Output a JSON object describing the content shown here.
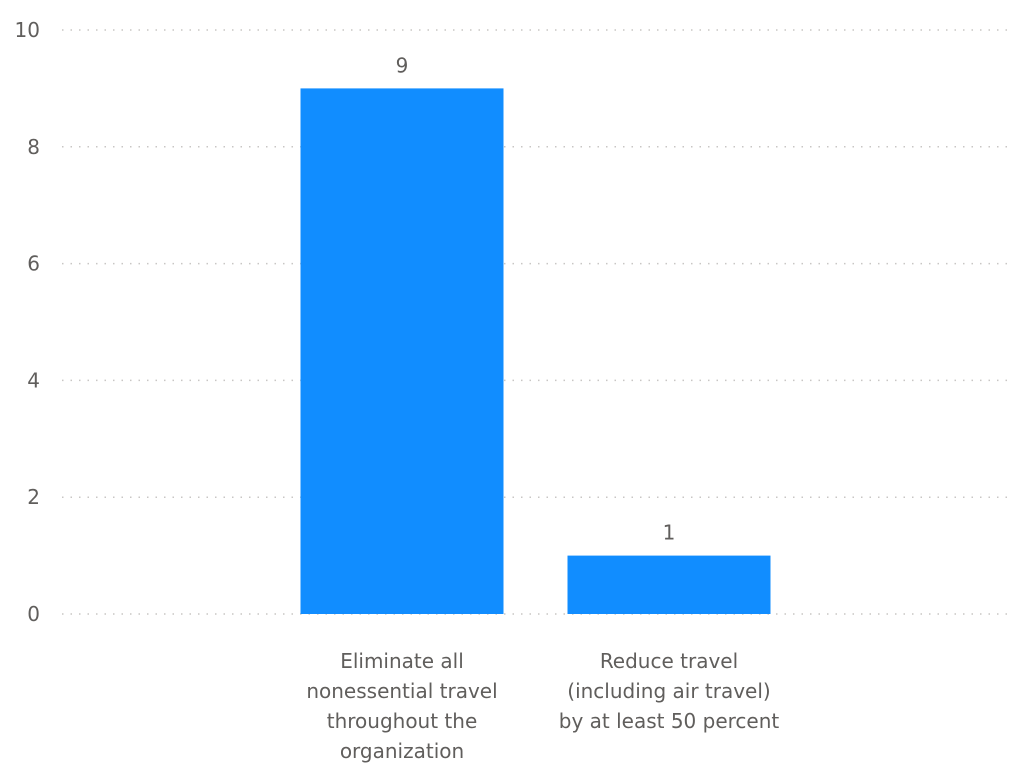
{
  "chart_data": {
    "type": "bar",
    "categories": [
      [
        "Eliminate all",
        "nonessential travel",
        "throughout the",
        "organization"
      ],
      [
        "Reduce travel",
        "(including air travel)",
        "by at least 50 percent"
      ]
    ],
    "values": [
      9,
      1
    ],
    "data_labels": [
      "9",
      "1"
    ],
    "ylim": [
      0,
      10
    ],
    "yticks": [
      "0",
      "2",
      "4",
      "6",
      "8",
      "10"
    ],
    "ytick_values": [
      0,
      2,
      4,
      6,
      8,
      10
    ],
    "grid": true,
    "bar_color": "#118dff"
  }
}
